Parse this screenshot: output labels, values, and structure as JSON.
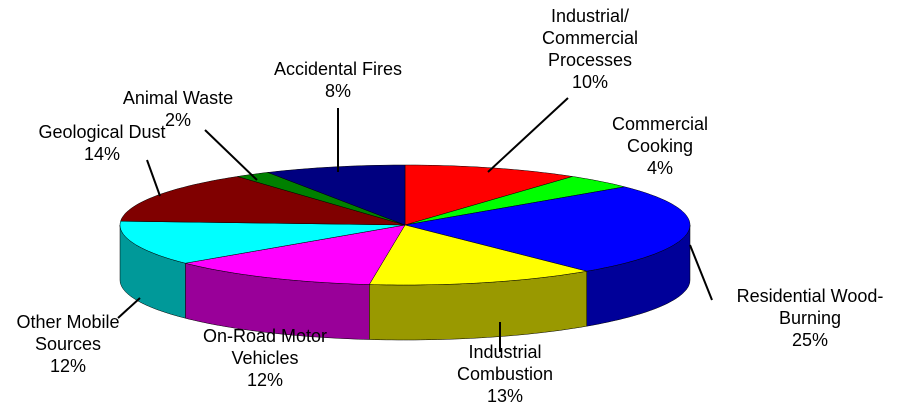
{
  "chart_data": {
    "type": "pie3d",
    "categories": [
      [
        "Industrial/",
        "Commercial",
        "Processes"
      ],
      [
        "Commercial",
        "Cooking"
      ],
      [
        "Residential Wood-",
        "Burning"
      ],
      [
        "Industrial",
        "Combustion"
      ],
      [
        "On-Road Motor",
        "Vehicles"
      ],
      [
        "Other Mobile",
        "Sources"
      ],
      [
        "Geological Dust"
      ],
      [
        "Animal  Waste"
      ],
      [
        "Accidental Fires"
      ]
    ],
    "values": [
      10,
      4,
      25,
      13,
      12,
      12,
      14,
      2,
      8
    ],
    "value_labels": [
      "10%",
      "4%",
      "25%",
      "13%",
      "12%",
      "12%",
      "14%",
      "2%",
      "8%"
    ],
    "colors": [
      "#ff0000",
      "#00ff00",
      "#0000ff",
      "#ffff00",
      "#ff00ff",
      "#00ffff",
      "#800000",
      "#008000",
      "#000080"
    ]
  }
}
